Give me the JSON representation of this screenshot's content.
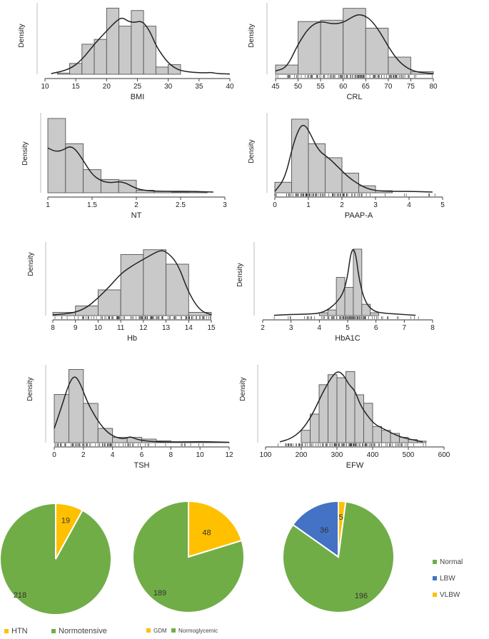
{
  "chart_data": [
    {
      "type": "histogram",
      "title": "",
      "xlabel": "BMI",
      "ylabel": "Density",
      "xlim": [
        10,
        40
      ],
      "ticks": [
        10,
        15,
        20,
        25,
        30,
        35,
        40
      ],
      "tick_labels": [
        "10",
        "15",
        "20",
        "25",
        "30",
        "35",
        "40"
      ],
      "bin_edges": [
        12,
        14,
        16,
        18,
        20,
        22,
        24,
        26,
        28,
        30,
        32
      ],
      "values": [
        0.1,
        0.9,
        2.5,
        2.9,
        5.5,
        4.0,
        5.3,
        4.0,
        0.6,
        0.8
      ],
      "ymax": 5.7,
      "density_curve": [
        [
          11,
          0.05
        ],
        [
          14,
          0.4
        ],
        [
          16,
          1.2
        ],
        [
          18,
          2.5
        ],
        [
          20,
          3.6
        ],
        [
          21.5,
          4.4
        ],
        [
          22.5,
          4.75
        ],
        [
          23.5,
          4.4
        ],
        [
          24.5,
          4.3
        ],
        [
          25.8,
          4.45
        ],
        [
          27,
          3.6
        ],
        [
          28,
          2.4
        ],
        [
          29,
          1.6
        ],
        [
          30,
          0.95
        ],
        [
          31,
          0.55
        ],
        [
          32,
          0.3
        ],
        [
          34,
          0.15
        ],
        [
          36,
          0.12
        ],
        [
          37,
          0.15
        ],
        [
          38,
          0.05
        ],
        [
          40,
          0.02
        ]
      ],
      "rug": false
    },
    {
      "type": "histogram",
      "title": "",
      "xlabel": "CRL",
      "ylabel": "Density",
      "xlim": [
        45,
        80
      ],
      "ticks": [
        45,
        50,
        55,
        60,
        65,
        70,
        75,
        80
      ],
      "tick_labels": [
        "45",
        "50",
        "55",
        "60",
        "65",
        "70",
        "75",
        "80"
      ],
      "bin_edges": [
        45,
        50,
        55,
        60,
        65,
        70,
        75,
        80
      ],
      "values": [
        0.7,
        4.0,
        4.1,
        5.0,
        3.5,
        1.3,
        0.2
      ],
      "ymax": 5.2,
      "density_curve": [
        [
          45,
          0.25
        ],
        [
          47.5,
          0.5
        ],
        [
          50,
          2.3
        ],
        [
          52.5,
          3.6
        ],
        [
          55,
          4.05
        ],
        [
          57.5,
          3.8
        ],
        [
          60,
          3.9
        ],
        [
          62.5,
          4.45
        ],
        [
          64,
          4.55
        ],
        [
          66,
          4.2
        ],
        [
          68,
          3.3
        ],
        [
          70,
          2.1
        ],
        [
          72,
          1.1
        ],
        [
          74,
          0.5
        ],
        [
          76,
          0.2
        ],
        [
          78,
          0.1
        ],
        [
          80,
          0.05
        ]
      ],
      "rug": true
    },
    {
      "type": "histogram",
      "title": "",
      "xlabel": "NT",
      "ylabel": "Density",
      "xlim": [
        1,
        3
      ],
      "ticks": [
        1,
        1.5,
        2,
        2.5,
        3
      ],
      "tick_labels": [
        "1",
        "1.5",
        "2",
        "2.5",
        "3"
      ],
      "bin_edges": [
        1,
        1.2,
        1.4,
        1.6,
        1.8,
        2.0,
        2.2,
        2.4,
        2.6,
        2.8
      ],
      "values": [
        5.3,
        3.5,
        1.65,
        0.95,
        0.9,
        0.18,
        0.1,
        0.05,
        0.02
      ],
      "ymax": 5.5,
      "density_curve": [
        [
          1,
          3.2
        ],
        [
          1.08,
          2.95
        ],
        [
          1.16,
          3.0
        ],
        [
          1.25,
          3.35
        ],
        [
          1.32,
          3.05
        ],
        [
          1.4,
          2.3
        ],
        [
          1.5,
          1.3
        ],
        [
          1.6,
          0.85
        ],
        [
          1.7,
          0.7
        ],
        [
          1.8,
          0.8
        ],
        [
          1.88,
          0.7
        ],
        [
          1.95,
          0.45
        ],
        [
          2.05,
          0.2
        ],
        [
          2.2,
          0.12
        ],
        [
          2.4,
          0.1
        ],
        [
          2.6,
          0.1
        ],
        [
          2.87,
          0.05
        ]
      ],
      "rug": false
    },
    {
      "type": "histogram",
      "title": "",
      "xlabel": "PAAP-A",
      "ylabel": "Density",
      "xlim": [
        0,
        5
      ],
      "ticks": [
        0,
        1,
        2,
        3,
        4,
        5
      ],
      "tick_labels": [
        "0",
        "1",
        "2",
        "3",
        "4",
        "5"
      ],
      "bin_edges": [
        0,
        0.5,
        1,
        1.5,
        2,
        2.5,
        3,
        3.5
      ],
      "values": [
        0.15,
        1.05,
        0.7,
        0.5,
        0.28,
        0.1,
        0.03
      ],
      "ymax": 1.1,
      "density_curve": [
        [
          0,
          0.02
        ],
        [
          0.3,
          0.2
        ],
        [
          0.55,
          0.7
        ],
        [
          0.75,
          0.95
        ],
        [
          0.9,
          0.97
        ],
        [
          1.05,
          0.85
        ],
        [
          1.3,
          0.6
        ],
        [
          1.6,
          0.5
        ],
        [
          1.9,
          0.36
        ],
        [
          2.2,
          0.22
        ],
        [
          2.5,
          0.12
        ],
        [
          2.8,
          0.05
        ],
        [
          3.2,
          0.02
        ],
        [
          4.0,
          0.02
        ],
        [
          4.7,
          0.01
        ]
      ],
      "rug": true
    },
    {
      "type": "histogram",
      "title": "",
      "xlabel": "Hb",
      "ylabel": "Density",
      "xlim": [
        8,
        15
      ],
      "ticks": [
        8,
        9,
        10,
        11,
        12,
        13,
        14,
        15
      ],
      "tick_labels": [
        "8",
        "9",
        "10",
        "11",
        "12",
        "13",
        "14",
        "15"
      ],
      "bin_edges": [
        8,
        9,
        10,
        11,
        12,
        13,
        14,
        15
      ],
      "values": [
        0.02,
        0.06,
        0.16,
        0.38,
        0.41,
        0.32,
        0.02
      ],
      "ymax": 0.44,
      "density_curve": [
        [
          8,
          0.005
        ],
        [
          8.5,
          0.01
        ],
        [
          9,
          0.02
        ],
        [
          9.5,
          0.05
        ],
        [
          10,
          0.11
        ],
        [
          10.5,
          0.18
        ],
        [
          11,
          0.26
        ],
        [
          11.5,
          0.31
        ],
        [
          12,
          0.35
        ],
        [
          12.5,
          0.39
        ],
        [
          12.75,
          0.405
        ],
        [
          13,
          0.4
        ],
        [
          13.5,
          0.33
        ],
        [
          14,
          0.14
        ],
        [
          14.5,
          0.03
        ],
        [
          15,
          0.005
        ]
      ],
      "rug": true
    },
    {
      "type": "histogram",
      "title": "",
      "xlabel": "HbA1C",
      "ylabel": "Density",
      "xlim": [
        2,
        8
      ],
      "ticks": [
        2,
        3,
        4,
        5,
        6,
        7,
        8
      ],
      "tick_labels": [
        "2",
        "3",
        "4",
        "5",
        "6",
        "7",
        "8"
      ],
      "bin_edges": [
        4.0,
        4.3,
        4.6,
        4.9,
        5.2,
        5.5,
        5.8,
        6.1
      ],
      "values": [
        0.1,
        0.2,
        1.35,
        1.0,
        2.35,
        0.4,
        0.1
      ],
      "ymax": 2.5,
      "density_curve": [
        [
          2.4,
          0.01
        ],
        [
          3,
          0.04
        ],
        [
          3.6,
          0.05
        ],
        [
          4.0,
          0.08
        ],
        [
          4.3,
          0.2
        ],
        [
          4.6,
          0.45
        ],
        [
          4.85,
          0.8
        ],
        [
          5.0,
          1.4
        ],
        [
          5.1,
          2.15
        ],
        [
          5.2,
          2.4
        ],
        [
          5.3,
          2.1
        ],
        [
          5.4,
          1.3
        ],
        [
          5.6,
          0.5
        ],
        [
          5.9,
          0.15
        ],
        [
          6.3,
          0.08
        ],
        [
          6.8,
          0.05
        ],
        [
          7.4,
          0.01
        ]
      ],
      "rug": true
    },
    {
      "type": "histogram",
      "title": "",
      "xlabel": "TSH",
      "ylabel": "Density",
      "xlim": [
        0,
        12
      ],
      "ticks": [
        0,
        2,
        4,
        6,
        8,
        10,
        12
      ],
      "tick_labels": [
        "0",
        "2",
        "4",
        "6",
        "8",
        "10",
        "12"
      ],
      "bin_edges": [
        0,
        1,
        2,
        3,
        4,
        5,
        6,
        7,
        8,
        9,
        10,
        11,
        12
      ],
      "values": [
        0.27,
        0.41,
        0.22,
        0.08,
        0.03,
        0.03,
        0.02,
        0.01,
        0.005,
        0.003,
        0.003,
        0.002
      ],
      "ymax": 0.42,
      "density_curve": [
        [
          0,
          0.08
        ],
        [
          0.5,
          0.2
        ],
        [
          1,
          0.33
        ],
        [
          1.4,
          0.38
        ],
        [
          1.8,
          0.33
        ],
        [
          2.3,
          0.22
        ],
        [
          3,
          0.12
        ],
        [
          3.6,
          0.06
        ],
        [
          4.2,
          0.03
        ],
        [
          4.8,
          0.02
        ],
        [
          5.2,
          0.035
        ],
        [
          5.6,
          0.02
        ],
        [
          6.2,
          0.01
        ],
        [
          7,
          0.005
        ],
        [
          8,
          0.004
        ],
        [
          9,
          0.004
        ],
        [
          10,
          0.006
        ],
        [
          11,
          0.004
        ],
        [
          12,
          0.002
        ]
      ],
      "rug": true
    },
    {
      "type": "histogram",
      "title": "",
      "xlabel": "EFW",
      "ylabel": "Density",
      "xlim": [
        100,
        600
      ],
      "ticks": [
        100,
        200,
        300,
        400,
        500,
        600
      ],
      "tick_labels": [
        "100",
        "200",
        "300",
        "400",
        "500",
        "600"
      ],
      "bin_edges": [
        200,
        225,
        250,
        275,
        300,
        325,
        350,
        375,
        400,
        425,
        450,
        475,
        500,
        525,
        550
      ],
      "values": [
        0.0016,
        0.0037,
        0.0075,
        0.0088,
        0.0084,
        0.0092,
        0.0062,
        0.0051,
        0.0021,
        0.0016,
        0.0012,
        0.0007,
        0.0004,
        0.0002
      ],
      "ymax": 0.0097,
      "density_curve": [
        [
          140,
          0.0001
        ],
        [
          170,
          0.0005
        ],
        [
          200,
          0.0015
        ],
        [
          230,
          0.0035
        ],
        [
          260,
          0.0065
        ],
        [
          285,
          0.0085
        ],
        [
          302,
          0.0093
        ],
        [
          318,
          0.0088
        ],
        [
          335,
          0.0074
        ],
        [
          350,
          0.0068
        ],
        [
          365,
          0.0049
        ],
        [
          385,
          0.0035
        ],
        [
          405,
          0.0024
        ],
        [
          430,
          0.0018
        ],
        [
          455,
          0.0012
        ],
        [
          480,
          0.0007
        ],
        [
          510,
          0.0004
        ],
        [
          540,
          0.0001
        ]
      ],
      "rug": true
    },
    {
      "type": "pie",
      "labels": [
        "HTN",
        "Normotensive"
      ],
      "values": [
        19,
        218
      ],
      "colors": [
        "#ffc000",
        "#70ad47"
      ],
      "legend": "bottom"
    },
    {
      "type": "pie",
      "labels": [
        "GDM",
        "Normoglycemic"
      ],
      "values": [
        48,
        189
      ],
      "colors": [
        "#ffc000",
        "#70ad47"
      ],
      "legend": "bottom"
    },
    {
      "type": "pie",
      "labels": [
        "Normal",
        "LBW",
        "VLBW"
      ],
      "values": [
        196,
        36,
        5
      ],
      "colors": [
        "#70ad47",
        "#4472c4",
        "#ffc000"
      ],
      "legend": "right"
    }
  ]
}
